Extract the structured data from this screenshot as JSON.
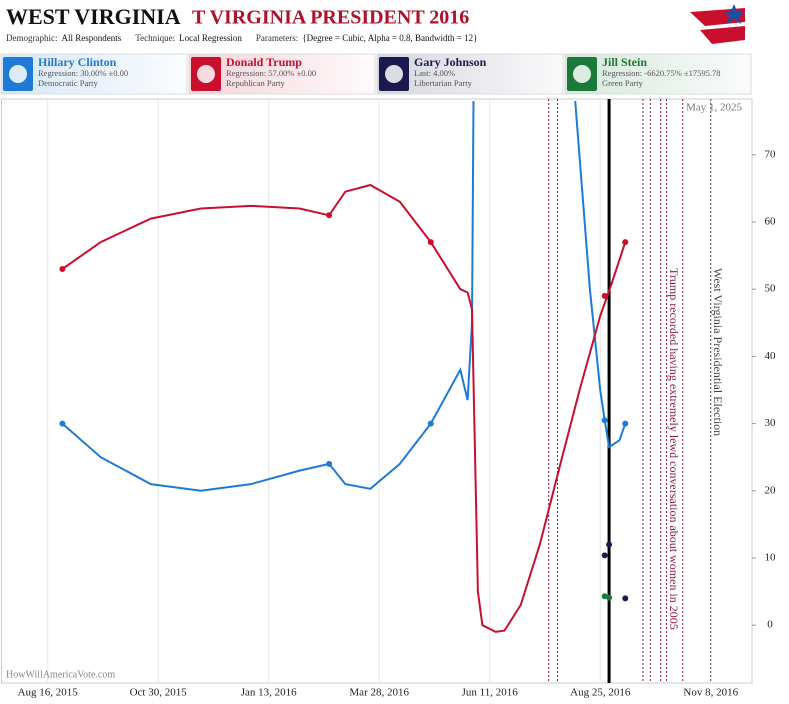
{
  "chart_data": {
    "type": "line",
    "title": "WEST VIRGINIA",
    "subtitle": "T VIRGINIA PRESIDENT 2016",
    "info": [
      {
        "label": "Demographic:",
        "value": "All Respondents"
      },
      {
        "label": "Technique:",
        "value": "Local Regression"
      },
      {
        "label": "Parameters:",
        "value": "{Degree = Cubic, Alpha = 0.8, Bandwidth = 12}"
      }
    ],
    "date_note": "May 1, 2025",
    "watermark": "HowWillAmericaVote.com",
    "xlim": [
      "2015-07-16",
      "2016-12-06"
    ],
    "ylim": [
      -8.6,
      78.3
    ],
    "xticks": [
      {
        "value": "2015-08-16",
        "label": "Aug 16, 2015"
      },
      {
        "value": "2015-10-30",
        "label": "Oct 30, 2015"
      },
      {
        "value": "2016-01-13",
        "label": "Jan 13, 2016"
      },
      {
        "value": "2016-03-28",
        "label": "Mar 28, 2016"
      },
      {
        "value": "2016-06-11",
        "label": "Jun 11, 2016"
      },
      {
        "value": "2016-08-25",
        "label": "Aug 25, 2016"
      },
      {
        "value": "2016-11-08",
        "label": "Nov 8, 2016"
      }
    ],
    "yticks": [
      0,
      10,
      20,
      30,
      40,
      50,
      60,
      70
    ],
    "grid": true,
    "series": [
      {
        "name": "Hillary Clinton",
        "detail": "Regression: 30.00% ±0.00",
        "party": "Democratic Party",
        "color": "#1f7ad6",
        "x": [
          "2015-08-26",
          "2015-09-21",
          "2015-10-25",
          "2015-11-28",
          "2016-01-01",
          "2016-02-03",
          "2016-02-23",
          "2016-03-05",
          "2016-03-22",
          "2016-04-11",
          "2016-05-02",
          "2016-05-22",
          "2016-05-27",
          "2016-05-30",
          "2016-05-31",
          "2016-06-01",
          "2016-08-08",
          "2016-08-18",
          "2016-08-25",
          "2016-08-28",
          "2016-08-31",
          "2016-09-07",
          "2016-09-11"
        ],
        "values": [
          30,
          25,
          21,
          20,
          21,
          23,
          24,
          21,
          20.3,
          24,
          30,
          38,
          33.5,
          45,
          78,
          null,
          78,
          50,
          35,
          30.5,
          26.5,
          27.5,
          30
        ],
        "poll_x": [
          "2015-08-26",
          "2016-02-23",
          "2016-05-02",
          "2016-08-28",
          "2016-09-11"
        ],
        "poll_values": [
          30,
          24,
          30,
          30.5,
          30
        ]
      },
      {
        "name": "Donald Trump",
        "detail": "Regression: 57.00% ±0.00",
        "party": "Republican Party",
        "color": "#c8102e",
        "x": [
          "2015-08-26",
          "2015-09-21",
          "2015-10-25",
          "2015-11-28",
          "2016-01-01",
          "2016-02-03",
          "2016-02-23",
          "2016-03-05",
          "2016-03-22",
          "2016-04-11",
          "2016-05-02",
          "2016-05-22",
          "2016-05-27",
          "2016-05-30",
          "2016-06-03",
          "2016-06-06",
          "2016-06-15",
          "2016-06-21",
          "2016-07-02",
          "2016-07-15",
          "2016-07-29",
          "2016-08-11",
          "2016-08-25",
          "2016-09-02",
          "2016-09-11"
        ],
        "values": [
          53,
          57,
          60.5,
          62,
          62.4,
          62,
          61,
          64.5,
          65.5,
          63,
          57,
          50,
          49.5,
          47,
          5,
          0,
          -1,
          -0.8,
          3,
          12,
          24,
          35,
          46,
          51,
          57
        ],
        "poll_x": [
          "2015-08-26",
          "2016-02-23",
          "2016-05-02",
          "2016-08-28",
          "2016-09-11"
        ],
        "poll_values": [
          53,
          61,
          57,
          49,
          57
        ]
      },
      {
        "name": "Gary Johnson",
        "detail": "Last: 4.00%",
        "party": "Libertarian Party",
        "color": "#1a1a4e",
        "x": [],
        "values": [],
        "poll_x": [
          "2016-08-28",
          "2016-08-31",
          "2016-09-11"
        ],
        "poll_values": [
          10.4,
          12,
          4
        ]
      },
      {
        "name": "Jill Stein",
        "detail": "Regression: -6620.75% ±17595.78",
        "party": "Green Party",
        "color": "#1b7a3a",
        "x": [],
        "values": [],
        "poll_x": [
          "2016-08-28",
          "2016-08-31"
        ],
        "poll_values": [
          4.3,
          4.1
        ]
      }
    ],
    "events": [
      {
        "x": "2016-07-21",
        "color": "#8b1a3a"
      },
      {
        "x": "2016-07-27",
        "color": "#8b1a3a"
      },
      {
        "x": "2016-08-31",
        "color": "#000000"
      },
      {
        "x": "2016-09-23",
        "color": "#8b1a3a"
      },
      {
        "x": "2016-09-28",
        "color": "#8b1a3a"
      },
      {
        "x": "2016-10-05",
        "color": "#8b1a3a"
      },
      {
        "x": "2016-10-09",
        "color": "#8b1a3a"
      },
      {
        "x": "2016-10-20",
        "color": "#8b1a3a"
      },
      {
        "x": "2016-11-08",
        "color": "#555555"
      }
    ],
    "annotations": [
      {
        "x": "2016-10-09",
        "text": "Trump recorded having extremely lewd conversation about women in 2005",
        "color": "#8b1a3a"
      },
      {
        "x": "2016-11-08",
        "text": "West Virginia Presidential Election",
        "color": "#444444"
      }
    ]
  }
}
